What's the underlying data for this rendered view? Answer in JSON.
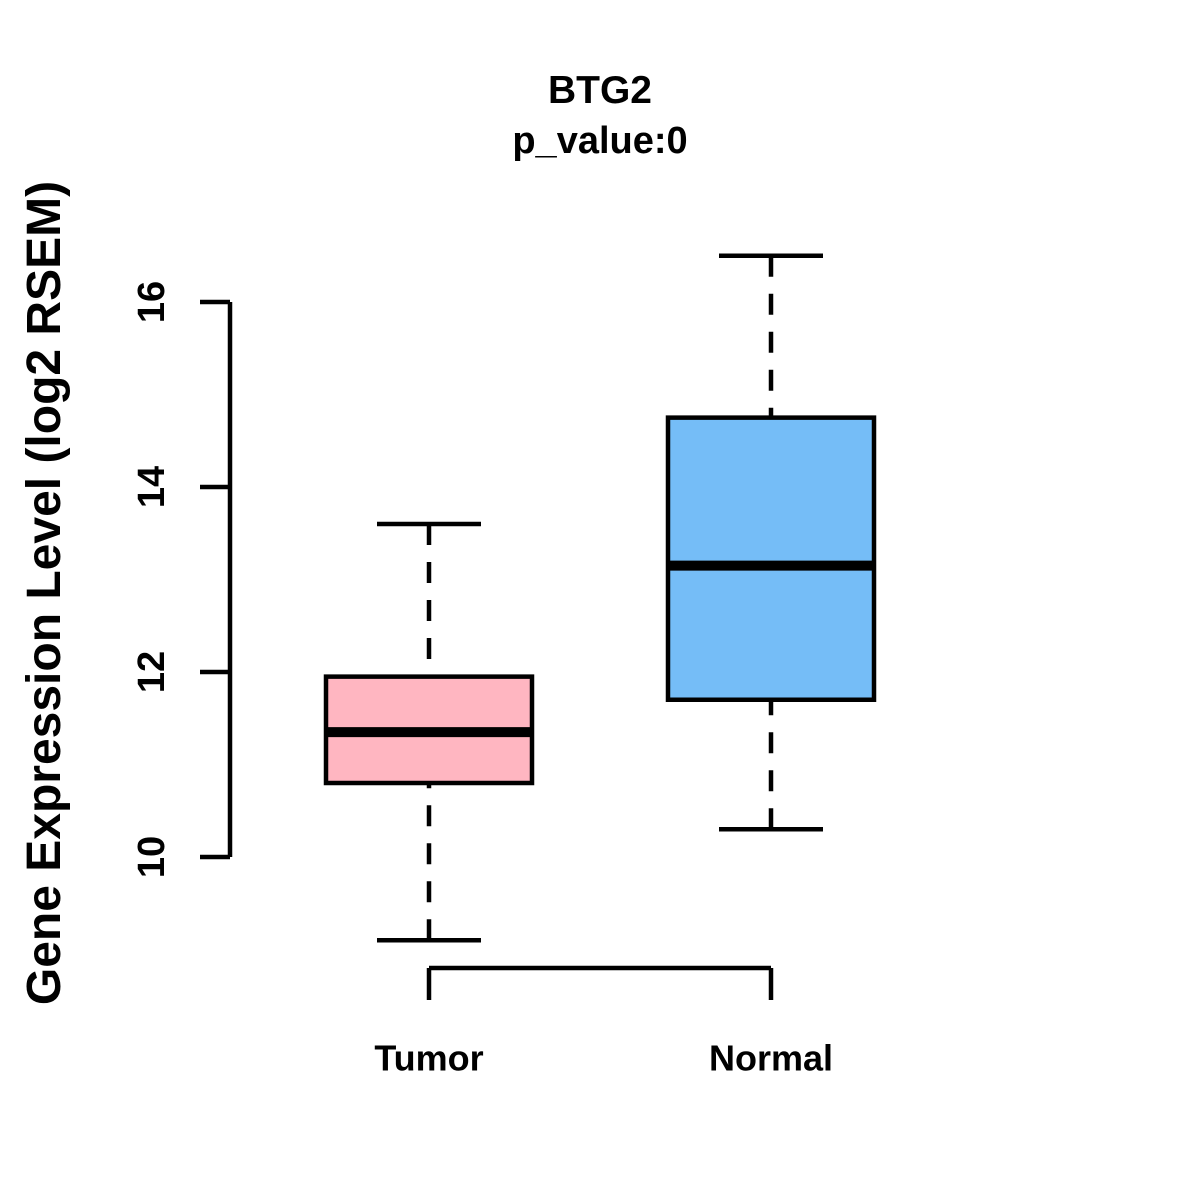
{
  "figure": {
    "background_color": "#FFFFFF",
    "text_color": "#000000"
  },
  "chart_data": {
    "type": "boxplot",
    "title": "BTG2",
    "subtitle": "p_value:0",
    "p_value": 0,
    "ylabel": "Gene Expression Level (log2 RSEM)",
    "xlabel": "",
    "axis_range_y": [
      10,
      16
    ],
    "yticks": [
      10,
      12,
      14,
      16
    ],
    "yticklabels": [
      "10",
      "12",
      "14",
      "16"
    ],
    "categories": [
      "Tumor",
      "Normal"
    ],
    "grid": false,
    "legend_position": "none",
    "box_border_color": "#000000",
    "median_line_color": "#000000",
    "whisker_style": "dashed",
    "series": [
      {
        "name": "Tumor",
        "fill_color": "#FFB6C1",
        "whisker_low": 9.1,
        "q1": 10.8,
        "median": 11.35,
        "q3": 11.95,
        "whisker_high": 13.6
      },
      {
        "name": "Normal",
        "fill_color": "#75BDF7",
        "whisker_low": 10.3,
        "q1": 11.7,
        "median": 13.15,
        "q3": 14.75,
        "whisker_high": 16.5
      }
    ]
  }
}
